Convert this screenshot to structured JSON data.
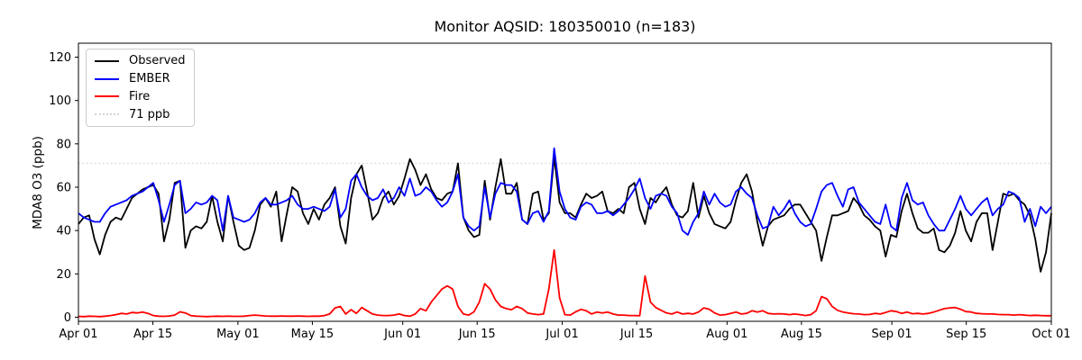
{
  "chart_data": {
    "type": "line",
    "title": "Monitor AQSID: 180350010 (n=183)",
    "ylabel": "MDA8 O3 (ppb)",
    "xlabel": "",
    "grid": false,
    "legend_position": "upper left",
    "n_points": 183,
    "x_total_days": 183,
    "x_tick_labels": [
      "Apr 01",
      "Apr 15",
      "May 01",
      "May 15",
      "Jun 01",
      "Jun 15",
      "Jul 01",
      "Jul 15",
      "Aug 01",
      "Aug 15",
      "Sep 01",
      "Sep 15",
      "Oct 01"
    ],
    "x_tick_days": [
      0,
      14,
      30,
      44,
      61,
      75,
      91,
      105,
      122,
      136,
      153,
      167,
      183
    ],
    "y_ticks": [
      0,
      20,
      40,
      60,
      80,
      100,
      120
    ],
    "ylim": [
      -2,
      126.5
    ],
    "ref_line": {
      "value": 71,
      "label": "71 ppb",
      "color": "#d3d3d3",
      "style": "dotted"
    },
    "legend": [
      {
        "label": "Observed",
        "color": "#000000",
        "style": "solid"
      },
      {
        "label": "EMBER",
        "color": "#0000ff",
        "style": "solid"
      },
      {
        "label": "Fire",
        "color": "#ff0000",
        "style": "solid"
      },
      {
        "label": "71 ppb",
        "color": "#d3d3d3",
        "style": "dotted"
      }
    ],
    "series": [
      {
        "name": "Observed",
        "color": "#000000",
        "values": [
          43,
          46,
          47,
          36,
          29,
          38,
          44,
          46,
          45,
          50,
          55,
          57,
          59,
          60,
          61,
          57,
          35,
          45,
          62,
          63,
          32,
          40,
          42,
          41,
          44,
          56,
          44,
          35,
          56,
          44,
          33,
          31,
          32,
          40,
          52,
          55,
          51,
          58,
          35,
          48,
          60,
          58,
          48,
          43,
          50,
          45,
          52,
          55,
          60,
          42,
          34,
          55,
          66,
          70,
          58,
          45,
          48,
          55,
          58,
          52,
          56,
          64,
          73,
          68,
          61,
          66,
          59,
          55,
          54,
          57,
          58,
          71,
          46,
          40,
          37,
          38,
          63,
          45,
          60,
          73,
          57,
          57,
          62,
          45,
          43,
          57,
          58,
          45,
          48,
          74,
          53,
          48,
          48,
          46,
          52,
          57,
          55,
          56,
          58,
          49,
          48,
          50,
          48,
          60,
          62,
          50,
          43,
          55,
          53,
          57,
          60,
          52,
          47,
          46,
          49,
          62,
          46,
          56,
          48,
          43,
          42,
          41,
          44,
          54,
          62,
          66,
          58,
          44,
          33,
          42,
          45,
          46,
          47,
          50,
          52,
          52,
          48,
          44,
          40,
          26,
          37,
          47,
          47,
          48,
          49,
          55,
          52,
          47,
          45,
          42,
          40,
          28,
          38,
          37,
          49,
          57,
          48,
          41,
          39,
          39,
          41,
          31,
          30,
          33,
          39,
          49,
          40,
          35,
          44,
          48,
          48,
          31,
          44,
          57,
          56,
          57,
          54,
          52,
          47,
          36,
          21,
          30,
          48
        ]
      },
      {
        "name": "EMBER",
        "color": "#0000ff",
        "values": [
          48,
          46,
          45,
          44,
          44,
          48,
          51,
          52,
          53,
          54,
          56,
          57,
          58,
          60,
          62,
          54,
          44,
          52,
          61,
          63,
          48,
          50,
          53,
          52,
          53,
          56,
          54,
          40,
          56,
          46,
          45,
          44,
          45,
          48,
          53,
          55,
          52,
          52,
          53,
          54,
          56,
          52,
          50,
          50,
          51,
          50,
          49,
          51,
          59,
          46,
          50,
          63,
          66,
          60,
          56,
          54,
          55,
          59,
          53,
          55,
          60,
          56,
          64,
          56,
          57,
          60,
          58,
          54,
          51,
          53,
          58,
          66,
          46,
          42,
          40,
          42,
          60,
          46,
          57,
          62,
          61,
          61,
          58,
          45,
          43,
          48,
          49,
          44,
          49,
          78,
          58,
          50,
          46,
          45,
          51,
          53,
          52,
          48,
          48,
          49,
          47,
          49,
          52,
          55,
          59,
          64,
          55,
          50,
          56,
          57,
          56,
          51,
          48,
          40,
          38,
          44,
          48,
          58,
          52,
          57,
          53,
          51,
          52,
          58,
          60,
          57,
          55,
          47,
          41,
          42,
          51,
          47,
          50,
          54,
          48,
          44,
          42,
          43,
          50,
          58,
          61,
          62,
          56,
          51,
          59,
          60,
          53,
          50,
          47,
          44,
          43,
          52,
          42,
          40,
          55,
          62,
          54,
          52,
          53,
          47,
          43,
          40,
          40,
          45,
          50,
          56,
          50,
          47,
          50,
          53,
          55,
          47,
          50,
          52,
          58,
          57,
          55,
          44,
          50,
          42,
          51,
          48,
          51
        ]
      },
      {
        "name": "Fire",
        "color": "#ff0000",
        "values": [
          0.4,
          0.3,
          0.5,
          0.4,
          0.3,
          0.5,
          0.8,
          1.2,
          1.8,
          1.5,
          2.2,
          2.0,
          2.4,
          1.8,
          0.8,
          0.5,
          0.4,
          0.6,
          1.0,
          2.5,
          2.0,
          0.8,
          0.5,
          0.4,
          0.3,
          0.4,
          0.5,
          0.4,
          0.5,
          0.4,
          0.4,
          0.5,
          0.8,
          1.0,
          0.8,
          0.6,
          0.5,
          0.5,
          0.6,
          0.5,
          0.5,
          0.6,
          0.5,
          0.4,
          0.5,
          0.5,
          0.8,
          1.5,
          4.3,
          5.0,
          1.5,
          3.5,
          1.8,
          4.5,
          3.0,
          1.5,
          1.0,
          0.8,
          0.8,
          1.0,
          1.5,
          0.8,
          0.5,
          1.5,
          4.0,
          3.0,
          7.0,
          10.0,
          13.0,
          14.5,
          13.0,
          5.0,
          1.5,
          1.0,
          2.5,
          7.0,
          15.5,
          13.0,
          8.0,
          5.0,
          4.0,
          3.5,
          5.0,
          4.0,
          2.0,
          1.5,
          1.2,
          1.5,
          13.0,
          31.0,
          9.0,
          1.2,
          1.0,
          2.5,
          3.6,
          3.0,
          1.5,
          2.4,
          2.0,
          2.4,
          1.5,
          1.0,
          1.0,
          0.8,
          0.8,
          0.7,
          19.0,
          7.0,
          4.5,
          3.2,
          2.0,
          1.5,
          2.4,
          1.5,
          1.8,
          1.5,
          2.4,
          4.3,
          3.7,
          2.0,
          1.0,
          1.2,
          1.8,
          2.4,
          1.5,
          1.8,
          3.0,
          2.4,
          3.0,
          1.8,
          1.5,
          1.6,
          1.5,
          1.2,
          1.5,
          1.2,
          0.8,
          1.2,
          3.0,
          9.5,
          8.5,
          5.0,
          3.2,
          2.4,
          2.0,
          1.6,
          1.5,
          1.2,
          1.3,
          1.8,
          1.5,
          2.2,
          3.0,
          2.6,
          1.8,
          2.4,
          1.6,
          1.8,
          1.5,
          1.8,
          2.4,
          3.2,
          4.0,
          4.3,
          4.5,
          3.7,
          2.6,
          2.4,
          1.8,
          1.6,
          1.5,
          1.5,
          1.3,
          1.2,
          1.2,
          1.0,
          1.2,
          1.0,
          0.8,
          0.9,
          0.8,
          0.7,
          0.7
        ]
      }
    ]
  }
}
